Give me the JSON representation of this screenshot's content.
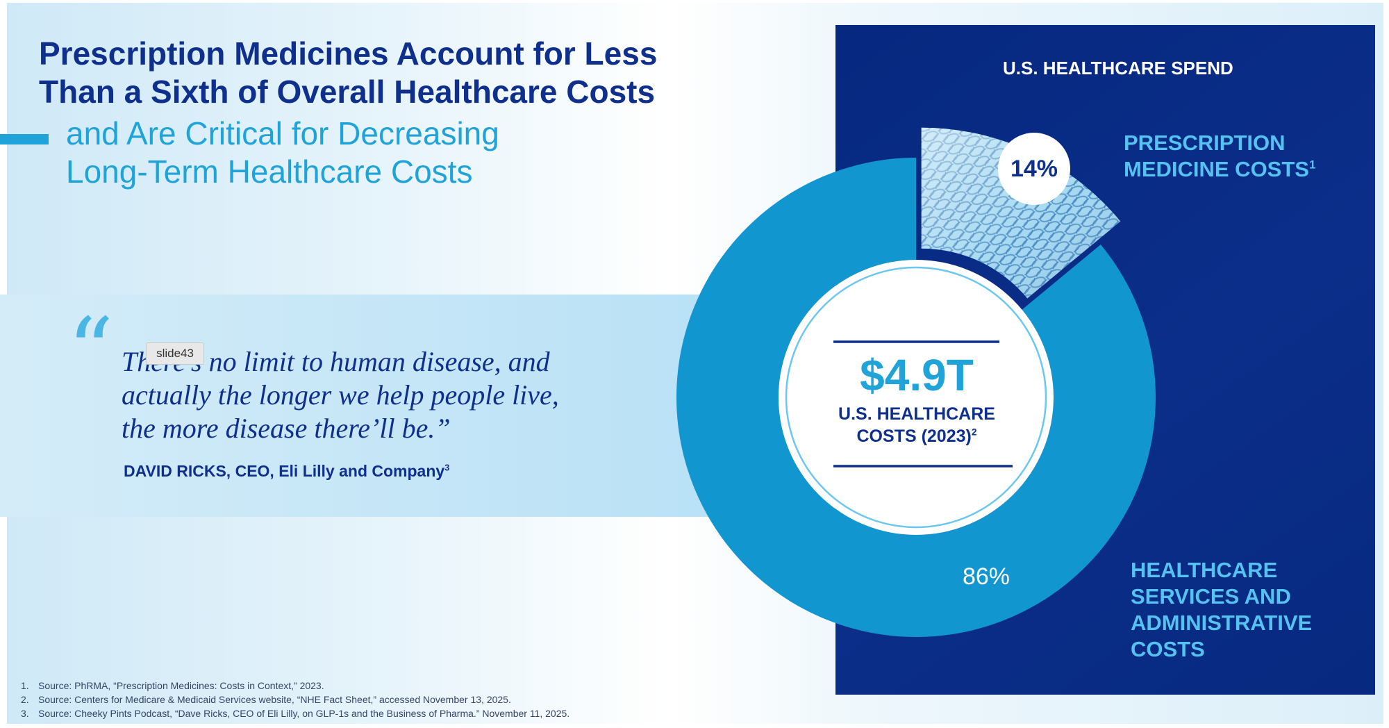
{
  "slide": {
    "title_line_1": "Prescription Medicines Account for Less",
    "title_line_2": "Than a Sixth of Overall Healthcare Costs",
    "subtitle_line_1": "and Are Critical for Decreasing",
    "subtitle_line_2": "Long-Term Healthcare Costs",
    "tag": "slide43"
  },
  "quote": {
    "mark": "“",
    "line_1": "There’s no limit to human disease, and",
    "line_2": "actually the longer we help people live,",
    "line_3": "the more disease there’ll be.”",
    "author": "DAVID RICKS, CEO, Eli Lilly and Company",
    "author_sup": "3"
  },
  "panel": {
    "title": "U.S. HEALTHCARE SPEND",
    "rx_label_line_1": "PRESCRIPTION",
    "rx_label_line_2": "MEDICINE COSTS",
    "rx_label_sup": "1",
    "services_label_line_1": "HEALTHCARE",
    "services_label_line_2": "SERVICES AND",
    "services_label_line_3": "ADMINISTRATIVE",
    "services_label_line_4": "COSTS",
    "center_value": "$4.9T",
    "center_label_line_1": "U.S. HEALTHCARE",
    "center_label_line_2": "COSTS (2023)",
    "center_label_sup": "2"
  },
  "chart_data": {
    "type": "pie",
    "title": "U.S. HEALTHCARE SPEND",
    "total": "$4.9T",
    "slices": [
      {
        "label": "PRESCRIPTION MEDICINE COSTS",
        "value": 14,
        "display": "14%",
        "exploded": true
      },
      {
        "label": "HEALTHCARE SERVICES AND ADMINISTRATIVE COSTS",
        "value": 86,
        "display": "86%"
      }
    ],
    "colors": {
      "services": "#1196d0",
      "prescription": "#8fcdea",
      "panel": "#07297f",
      "accent": "#1fa3d8",
      "navy": "#0f2f8c"
    }
  },
  "footnotes": [
    {
      "num": "1.",
      "text": "Source: PhRMA, “Prescription Medicines: Costs in Context,” 2023."
    },
    {
      "num": "2.",
      "text": "Source: Centers for Medicare & Medicaid Services website, “NHE Fact Sheet,” accessed November 13, 2025."
    },
    {
      "num": "3.",
      "text": "Source: Cheeky Pints Podcast, “Dave Ricks, CEO of Eli Lilly, on GLP-1s and the Business of Pharma.” November 11, 2025."
    }
  ]
}
